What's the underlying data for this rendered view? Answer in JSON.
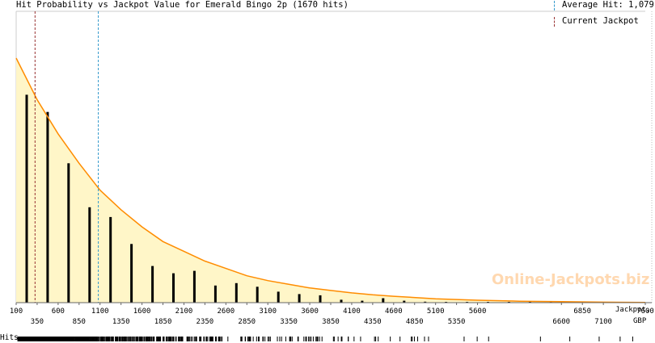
{
  "chart_data": {
    "type": "bar",
    "title": "Hit Probability vs Jackpot Value for Emerald Bingo 2p (1670 hits)",
    "xlabel": "Jackpot,",
    "xunit": "GBP",
    "xlim": [
      100,
      7600
    ],
    "ylim": [
      0,
      1
    ],
    "x_ticks_top": [
      100,
      600,
      1100,
      1600,
      2100,
      2600,
      3100,
      3600,
      4100,
      4600,
      5100,
      5600,
      6850,
      7600
    ],
    "x_ticks_bottom": [
      350,
      850,
      1350,
      1850,
      2350,
      2850,
      3350,
      3850,
      4350,
      4850,
      5350,
      6600,
      7100
    ],
    "average_hit": 1079,
    "current_jackpot": 325,
    "bars": {
      "x": [
        225,
        475,
        725,
        975,
        1225,
        1475,
        1725,
        1975,
        2225,
        2475,
        2725,
        2975,
        3225,
        3475,
        3725,
        3975,
        4225,
        4475,
        4725,
        4975,
        5225,
        5475,
        5725,
        5975,
        6225,
        6475,
        6725,
        6975,
        7225
      ],
      "values": [
        0.85,
        0.78,
        0.57,
        0.39,
        0.35,
        0.24,
        0.15,
        0.12,
        0.13,
        0.07,
        0.08,
        0.065,
        0.045,
        0.035,
        0.03,
        0.012,
        0.008,
        0.018,
        0.008,
        0.004,
        0.003,
        0.003,
        0.002,
        0.001,
        0.001,
        0.001,
        0.001,
        0.001,
        0.001
      ]
    },
    "fit_curve": {
      "x": [
        100,
        350,
        600,
        850,
        1100,
        1350,
        1600,
        1850,
        2100,
        2350,
        2600,
        2850,
        3100,
        3350,
        3600,
        3850,
        4100,
        4350,
        4600,
        5100,
        5600,
        6100,
        6600,
        7100,
        7600
      ],
      "values": [
        1.0,
        0.83,
        0.69,
        0.57,
        0.46,
        0.38,
        0.31,
        0.25,
        0.21,
        0.17,
        0.14,
        0.11,
        0.09,
        0.075,
        0.06,
        0.05,
        0.04,
        0.032,
        0.026,
        0.016,
        0.01,
        0.006,
        0.004,
        0.002,
        0.001
      ]
    },
    "legend": [
      {
        "label": "Average Hit: 1,079",
        "color": "#3399cc"
      },
      {
        "label": "Current Jackpot",
        "color": "#993333"
      }
    ],
    "rug_label": "Hits"
  },
  "colors": {
    "fill": "#fff6c8",
    "curve": "#ff8c00",
    "bar": "#000000",
    "average_line": "#3399cc",
    "current_line": "#993333",
    "axis": "#666666",
    "watermark": "#ffd8b0"
  },
  "watermark": "Online-Jackpots.biz"
}
